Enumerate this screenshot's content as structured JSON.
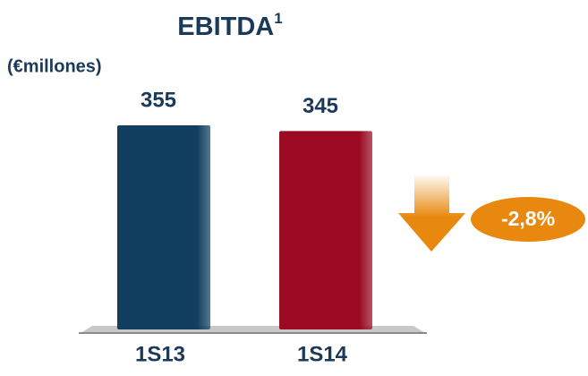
{
  "chart_data": {
    "type": "bar",
    "title": "EBITDA",
    "title_superscript": "1",
    "unit_label": "(€millones)",
    "categories": [
      "1S13",
      "1S14"
    ],
    "series": [
      {
        "name": null,
        "values": [
          355,
          345
        ],
        "colors": [
          "#123f5f",
          "#9a0a22"
        ]
      }
    ],
    "annotation": "-2,8%",
    "annotation_color": "#e8880e"
  }
}
